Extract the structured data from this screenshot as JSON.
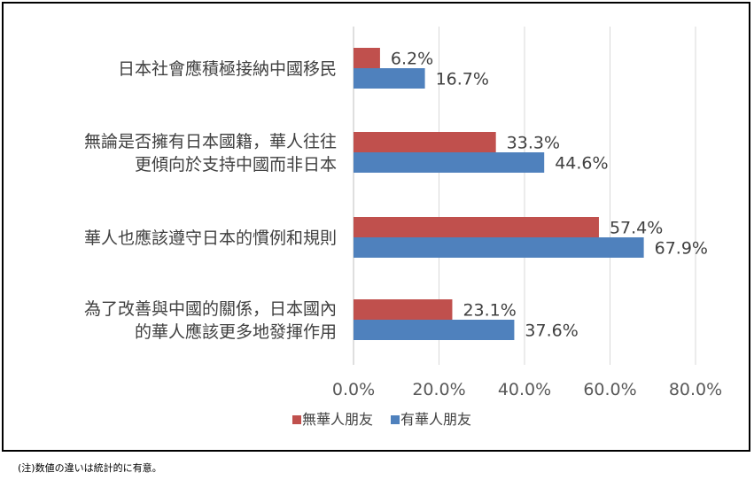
{
  "chart_data": {
    "type": "bar",
    "orientation": "horizontal",
    "categories": [
      [
        "日本社會應積極接納中國移民"
      ],
      [
        "無論是否擁有日本國籍，華人往往",
        "更傾向於支持中國而非日本"
      ],
      [
        "華人也應該遵守日本的慣例和規則"
      ],
      [
        "為了改善與中國的關係，日本國內",
        "的華人應該更多地發揮作用"
      ]
    ],
    "series": [
      {
        "name": "無華人朋友",
        "color": "#c0504d",
        "values": [
          6.2,
          33.3,
          57.4,
          23.1
        ],
        "labels": [
          "6.2%",
          "33.3%",
          "57.4%",
          "23.1%"
        ]
      },
      {
        "name": "有華人朋友",
        "color": "#4f81bd",
        "values": [
          16.7,
          44.6,
          67.9,
          37.6
        ],
        "labels": [
          "16.7%",
          "44.6%",
          "67.9%",
          "37.6%"
        ]
      }
    ],
    "xlim": [
      0,
      80
    ],
    "ticks": [
      "0.0%",
      "20.0%",
      "40.0%",
      "60.0%",
      "80.0%"
    ],
    "grid": true,
    "legend_position": "bottom"
  },
  "footnote": "(注)数値の違いは統計的に有意。"
}
